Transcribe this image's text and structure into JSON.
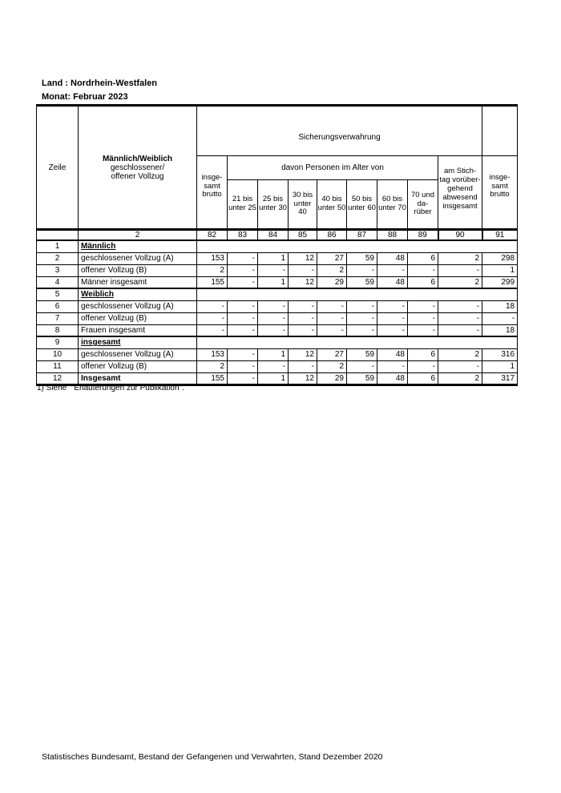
{
  "page": {
    "land_label": "Land : Nordrhein-Westfalen",
    "monat_label": "Monat: Februar 2023",
    "footnote": "1) Siehe  \"Erläuterungen zur Publikation\".",
    "footer": "Statistisches Bundesamt, Bestand der Gefangenen und Verwahrten, Stand Dezember 2020"
  },
  "table": {
    "header": {
      "zeile": "Zeile",
      "group_line1": "Männlich/Weiblich",
      "group_line2": "geschlossener/",
      "group_line3": "offener Vollzug",
      "span_title": "Sicherungsverwahrung",
      "davon": "davon Personen im Alter von",
      "col82": "insge-\nsamt\nbrutto",
      "age_cols": [
        "21 bis\nunter 25",
        "25 bis\nunter 30",
        "30 bis\nunter\n40",
        "40 bis\nunter 50",
        "50 bis\nunter 60",
        "60 bis\nunter 70",
        "70 und\nda-\nrüber"
      ],
      "col90": "am Stich-\ntag vorüber-\ngehend\nabwesend\ninsgesamt",
      "col91": "insge-\nsamt\nbrutto",
      "col_numbers": [
        "",
        "2",
        "82",
        "83",
        "84",
        "85",
        "86",
        "87",
        "88",
        "89",
        "90",
        "91"
      ]
    },
    "rows": [
      {
        "zeile": "1",
        "label": "Männlich",
        "kind": "group"
      },
      {
        "zeile": "2",
        "label": "geschlossener Vollzug (A)",
        "kind": "data",
        "values": [
          "153",
          "-",
          "1",
          "12",
          "27",
          "59",
          "48",
          "6",
          "2",
          "298"
        ]
      },
      {
        "zeile": "3",
        "label": "offener Vollzug (B)",
        "kind": "data",
        "values": [
          "2",
          "-",
          "-",
          "-",
          "2",
          "-",
          "-",
          "-",
          "-",
          "1"
        ]
      },
      {
        "zeile": "4",
        "label": "Männer insgesamt",
        "kind": "data",
        "thick_label_top": true,
        "values": [
          "155",
          "-",
          "1",
          "12",
          "29",
          "59",
          "48",
          "6",
          "2",
          "299"
        ]
      },
      {
        "zeile": "5",
        "label": "Weiblich",
        "kind": "group",
        "sep": true
      },
      {
        "zeile": "6",
        "label": "geschlossener Vollzug (A)",
        "kind": "data",
        "values": [
          "-",
          "-",
          "-",
          "-",
          "-",
          "-",
          "-",
          "-",
          "-",
          "18"
        ]
      },
      {
        "zeile": "7",
        "label": "offener Vollzug (B)",
        "kind": "data",
        "values": [
          "-",
          "-",
          "-",
          "-",
          "-",
          "-",
          "-",
          "-",
          "-",
          "-"
        ]
      },
      {
        "zeile": "8",
        "label": "Frauen insgesamt",
        "kind": "data",
        "thick_label_top": true,
        "values": [
          "-",
          "-",
          "-",
          "-",
          "-",
          "-",
          "-",
          "-",
          "-",
          "18"
        ]
      },
      {
        "zeile": "9",
        "label": "insgesamt",
        "kind": "group",
        "sep": true
      },
      {
        "zeile": "10",
        "label": "geschlossener Vollzug (A)",
        "kind": "data",
        "values": [
          "153",
          "-",
          "1",
          "12",
          "27",
          "59",
          "48",
          "6",
          "2",
          "316"
        ]
      },
      {
        "zeile": "11",
        "label": "offener Vollzug (B)",
        "kind": "data",
        "values": [
          "2",
          "-",
          "-",
          "-",
          "2",
          "-",
          "-",
          "-",
          "-",
          "1"
        ]
      },
      {
        "zeile": "12",
        "label": "Insgesamt",
        "kind": "total",
        "thick_label_top": true,
        "values": [
          "155",
          "-",
          "1",
          "12",
          "29",
          "59",
          "48",
          "6",
          "2",
          "317"
        ]
      }
    ]
  }
}
